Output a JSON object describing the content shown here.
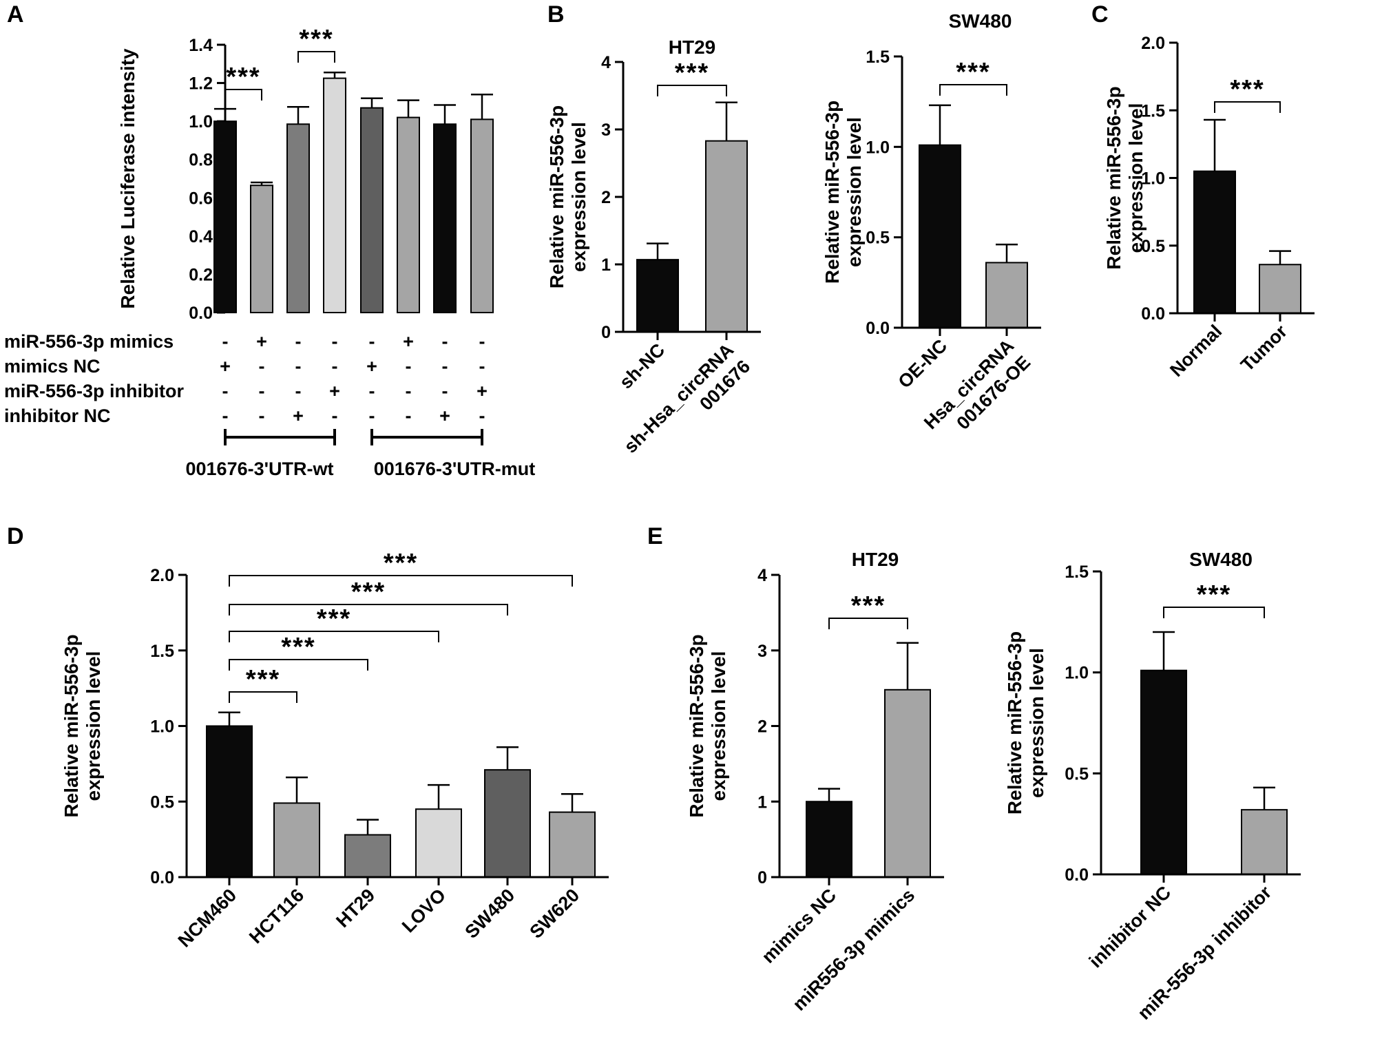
{
  "colors": {
    "black": "#0a0a0a",
    "gray_dark": "#6e6e6e",
    "gray_mid": "#7c7c7c",
    "gray_light": "#a5a5a5",
    "gray_very_light": "#d9d9d9",
    "gray_charcoal": "#5f5f5f"
  },
  "chart_data": [
    {
      "id": "A",
      "panel_label": "A",
      "type": "bar",
      "ylabel": "Relative Luciferase intensity",
      "ylim": [
        0,
        1.4
      ],
      "yticks": [
        0.0,
        0.2,
        0.4,
        0.6,
        0.8,
        1.0,
        1.2,
        1.4
      ],
      "ytick_labels": [
        "0.0",
        "0.2",
        "0.4",
        "0.6",
        "0.8",
        "1.0",
        "1.2",
        "1.4"
      ],
      "values": [
        1.0,
        0.665,
        0.985,
        1.225,
        1.07,
        1.02,
        0.985,
        1.01
      ],
      "errors": [
        0.065,
        0.015,
        0.09,
        0.03,
        0.05,
        0.09,
        0.1,
        0.13
      ],
      "bar_colors": [
        "black",
        "gray_light",
        "gray_mid",
        "gray_very_light",
        "gray_charcoal",
        "gray_light",
        "black",
        "gray_light"
      ],
      "conditions": [
        {
          "label": "miR-556-3p mimics",
          "signs": [
            "-",
            "+",
            "-",
            "-",
            "-",
            "+",
            "-",
            "-"
          ]
        },
        {
          "label": "mimics NC",
          "signs": [
            "+",
            "-",
            "-",
            "-",
            "+",
            "-",
            "-",
            "-"
          ]
        },
        {
          "label": "miR-556-3p inhibitor",
          "signs": [
            "-",
            "-",
            "-",
            "+",
            "-",
            "-",
            "-",
            "+"
          ]
        },
        {
          "label": "inhibitor NC",
          "signs": [
            "-",
            "-",
            "+",
            "-",
            "-",
            "-",
            "+",
            "-"
          ]
        }
      ],
      "groups": [
        {
          "label": "001676-3'UTR-wt",
          "bars": [
            0,
            3
          ]
        },
        {
          "label": "001676-3'UTR-mut",
          "bars": [
            4,
            7
          ]
        }
      ],
      "significance": [
        {
          "bars": [
            0,
            1
          ],
          "label": "***"
        },
        {
          "bars": [
            2,
            3
          ],
          "label": "***"
        }
      ]
    },
    {
      "id": "B1",
      "panel_label": "B",
      "type": "bar",
      "title": "HT29",
      "ylabel": [
        "Relative miR-556-3p",
        "expression level"
      ],
      "ylim": [
        0,
        4
      ],
      "yticks": [
        0,
        1,
        2,
        3,
        4
      ],
      "ytick_labels": [
        "0",
        "1",
        "2",
        "3",
        "4"
      ],
      "categories": [
        [
          "sh-NC"
        ],
        [
          "sh-Hsa_circRNA",
          "001676"
        ]
      ],
      "values": [
        1.07,
        2.83
      ],
      "errors": [
        0.24,
        0.57
      ],
      "bar_colors": [
        "black",
        "gray_light"
      ],
      "significance": [
        {
          "bars": [
            0,
            1
          ],
          "label": "***"
        }
      ]
    },
    {
      "id": "B2",
      "type": "bar",
      "title": "SW480",
      "ylabel": [
        "Relative miR-556-3p",
        "expression level"
      ],
      "ylim": [
        0,
        1.5
      ],
      "yticks": [
        0.0,
        0.5,
        1.0,
        1.5
      ],
      "ytick_labels": [
        "0.0",
        "0.5",
        "1.0",
        "1.5"
      ],
      "categories": [
        [
          "OE-NC"
        ],
        [
          "Hsa_circRNA",
          "001676-OE"
        ]
      ],
      "values": [
        1.01,
        0.36
      ],
      "errors": [
        0.22,
        0.1
      ],
      "bar_colors": [
        "black",
        "gray_light"
      ],
      "significance": [
        {
          "bars": [
            0,
            1
          ],
          "label": "***"
        }
      ]
    },
    {
      "id": "C",
      "panel_label": "C",
      "type": "bar",
      "ylabel": [
        "Relative miR-556-3p",
        "expression level"
      ],
      "ylim": [
        0,
        2.0
      ],
      "yticks": [
        0.0,
        0.5,
        1.0,
        1.5,
        2.0
      ],
      "ytick_labels": [
        "0.0",
        "0.5",
        "1.0",
        "1.5",
        "2.0"
      ],
      "categories": [
        [
          "Normal"
        ],
        [
          "Tumor"
        ]
      ],
      "values": [
        1.05,
        0.36
      ],
      "errors": [
        0.38,
        0.1
      ],
      "bar_colors": [
        "black",
        "gray_light"
      ],
      "significance": [
        {
          "bars": [
            0,
            1
          ],
          "label": "***"
        }
      ]
    },
    {
      "id": "D",
      "panel_label": "D",
      "type": "bar",
      "ylabel": [
        "Relative miR-556-3p",
        "expression level"
      ],
      "ylim": [
        0,
        2.0
      ],
      "yticks": [
        0.0,
        0.5,
        1.0,
        1.5,
        2.0
      ],
      "ytick_labels": [
        "0.0",
        "0.5",
        "1.0",
        "1.5",
        "2.0"
      ],
      "categories": [
        [
          "NCM460"
        ],
        [
          "HCT116"
        ],
        [
          "HT29"
        ],
        [
          "LOVO"
        ],
        [
          "SW480"
        ],
        [
          "SW620"
        ]
      ],
      "values": [
        1.0,
        0.49,
        0.28,
        0.45,
        0.71,
        0.43
      ],
      "errors": [
        0.09,
        0.17,
        0.1,
        0.16,
        0.15,
        0.12
      ],
      "bar_colors": [
        "black",
        "gray_light",
        "gray_mid",
        "gray_very_light",
        "gray_charcoal",
        "gray_light"
      ],
      "significance": [
        {
          "bars": [
            0,
            1
          ],
          "label": "***"
        },
        {
          "bars": [
            0,
            2
          ],
          "label": "***"
        },
        {
          "bars": [
            0,
            3
          ],
          "label": "***"
        },
        {
          "bars": [
            0,
            4
          ],
          "label": "***"
        },
        {
          "bars": [
            0,
            5
          ],
          "label": "***"
        }
      ]
    },
    {
      "id": "E1",
      "panel_label": "E",
      "type": "bar",
      "title": "HT29",
      "ylabel": [
        "Relative miR-556-3p",
        "expression level"
      ],
      "ylim": [
        0,
        4
      ],
      "yticks": [
        0,
        1,
        2,
        3,
        4
      ],
      "ytick_labels": [
        "0",
        "1",
        "2",
        "3",
        "4"
      ],
      "categories": [
        [
          "mimics NC"
        ],
        [
          "miR556-3p mimics"
        ]
      ],
      "values": [
        1.0,
        2.48
      ],
      "errors": [
        0.17,
        0.62
      ],
      "bar_colors": [
        "black",
        "gray_light"
      ],
      "significance": [
        {
          "bars": [
            0,
            1
          ],
          "label": "***"
        }
      ]
    },
    {
      "id": "E2",
      "type": "bar",
      "title": "SW480",
      "ylabel": [
        "Relative miR-556-3p",
        "expression level"
      ],
      "ylim": [
        0,
        1.5
      ],
      "yticks": [
        0.0,
        0.5,
        1.0,
        1.5
      ],
      "ytick_labels": [
        "0.0",
        "0.5",
        "1.0",
        "1.5"
      ],
      "categories": [
        [
          "inhibitor NC"
        ],
        [
          "miR-556-3p inhibitor"
        ]
      ],
      "values": [
        1.01,
        0.32
      ],
      "errors": [
        0.19,
        0.11
      ],
      "bar_colors": [
        "black",
        "gray_light"
      ],
      "significance": [
        {
          "bars": [
            0,
            1
          ],
          "label": "***"
        }
      ]
    }
  ]
}
